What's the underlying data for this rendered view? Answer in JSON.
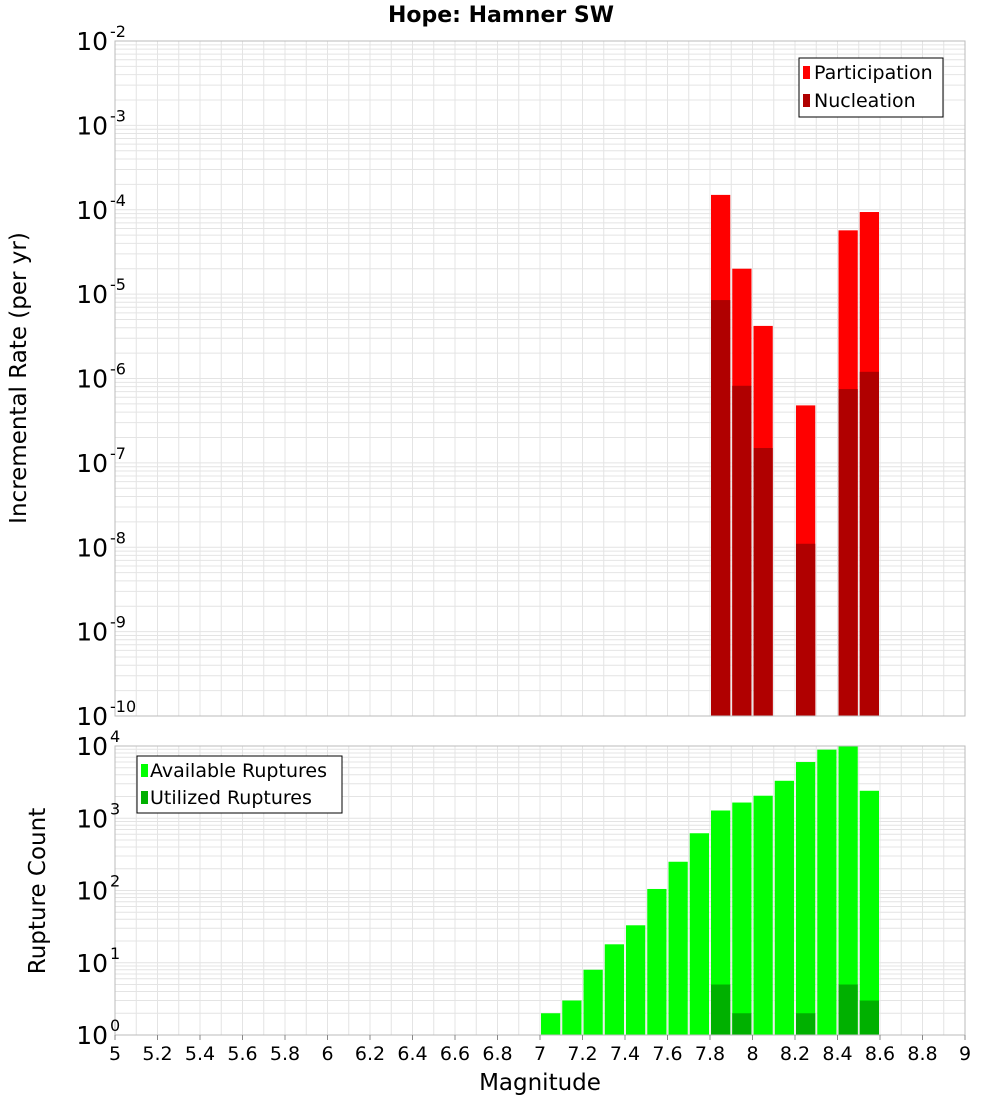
{
  "title": "Hope: Hamner SW",
  "xlabel": "Magnitude",
  "colors": {
    "participation": "#ff0000",
    "nucleation": "#b00000",
    "available": "#00ff00",
    "utilized": "#00b000",
    "grid": "#e4e4e4",
    "frame": "#bbbbbb"
  },
  "chart_data": [
    {
      "type": "bar",
      "title": "Hope: Hamner SW",
      "ylabel": "Incremental Rate (per yr)",
      "yscale": "log",
      "ylim_exp": [
        -10,
        -2
      ],
      "y_tick_exponents": [
        "-10",
        "-9",
        "-8",
        "-7",
        "-6",
        "-5",
        "-4",
        "-3",
        "-2"
      ],
      "xlim": [
        5,
        9
      ],
      "bar_width": 0.1,
      "legend": {
        "placement": "top-right",
        "items": [
          "Participation",
          "Nucleation"
        ]
      },
      "series": [
        {
          "name": "Participation",
          "x": [
            7.85,
            7.95,
            8.05,
            8.25,
            8.45,
            8.55
          ],
          "values": [
            0.00015,
            2e-05,
            4.2e-06,
            4.8e-07,
            5.7e-05,
            9.4e-05
          ]
        },
        {
          "name": "Nucleation",
          "x": [
            7.85,
            7.95,
            8.05,
            8.25,
            8.45,
            8.55
          ],
          "values": [
            8.5e-06,
            8.2e-07,
            1.5e-07,
            1.1e-08,
            7.5e-07,
            1.2e-06
          ]
        }
      ]
    },
    {
      "type": "bar",
      "ylabel": "Rupture Count",
      "xlabel": "Magnitude",
      "yscale": "log",
      "ylim_exp": [
        0,
        4
      ],
      "y_tick_exponents": [
        "0",
        "1",
        "2",
        "3",
        "4"
      ],
      "xlim": [
        5,
        9
      ],
      "x_ticks": [
        "5",
        "5.2",
        "5.4",
        "5.6",
        "5.8",
        "6",
        "6.2",
        "6.4",
        "6.6",
        "6.8",
        "7",
        "7.2",
        "7.4",
        "7.6",
        "7.8",
        "8",
        "8.2",
        "8.4",
        "8.6",
        "8.8",
        "9"
      ],
      "bar_width": 0.1,
      "legend": {
        "placement": "top-left",
        "items": [
          "Available Ruptures",
          "Utilized Ruptures"
        ]
      },
      "series": [
        {
          "name": "Available Ruptures",
          "x": [
            6.65,
            6.85,
            7.05,
            7.15,
            7.25,
            7.35,
            7.45,
            7.55,
            7.65,
            7.75,
            7.85,
            7.95,
            8.05,
            8.15,
            8.25,
            8.35,
            8.45,
            8.55
          ],
          "values": [
            1,
            1,
            2,
            3,
            8,
            18,
            33,
            105,
            250,
            620,
            1280,
            1650,
            2050,
            3300,
            6000,
            8900,
            9900,
            2400
          ]
        },
        {
          "name": "Utilized Ruptures",
          "x": [
            7.85,
            7.95,
            8.05,
            8.25,
            8.45,
            8.55
          ],
          "values": [
            5,
            2,
            1,
            2,
            5,
            3
          ]
        }
      ]
    }
  ]
}
